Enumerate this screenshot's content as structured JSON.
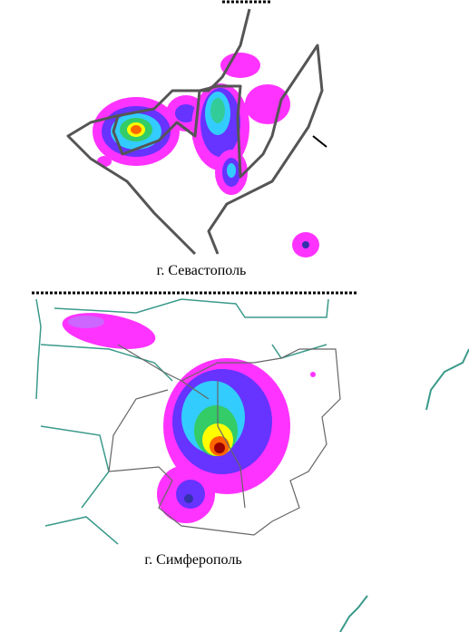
{
  "maps": [
    {
      "caption": "г. Севастополь"
    },
    {
      "caption": "г. Симферополь"
    }
  ]
}
